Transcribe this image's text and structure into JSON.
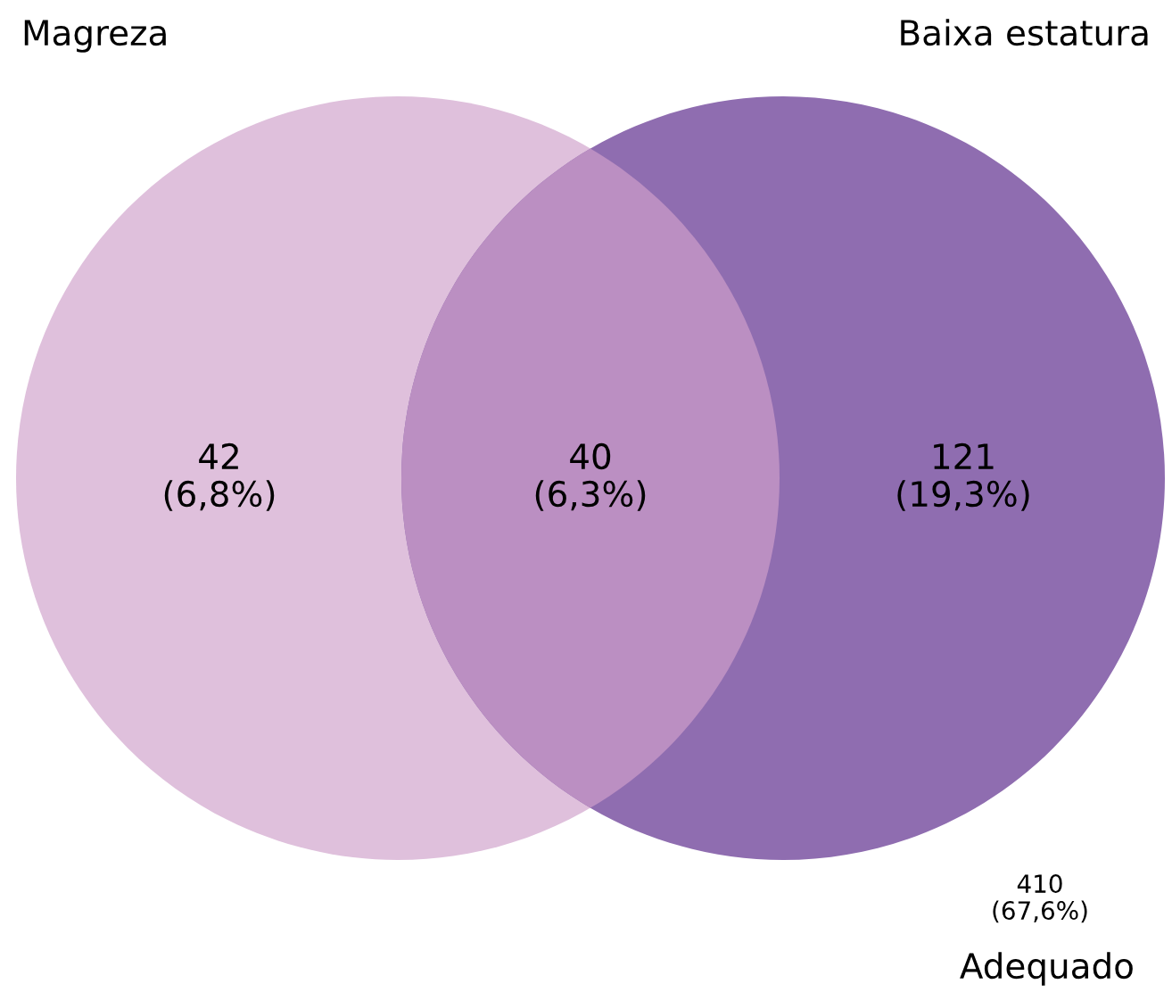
{
  "chart_data": {
    "type": "other",
    "categories": [
      "Magreza",
      null,
      "Baixa estatura",
      "Adequado"
    ],
    "values": [
      42,
      40,
      121,
      410
    ],
    "data_labels": true,
    "annotations": [
      "(6,8%)",
      "(6,3%)",
      "(19,3%)",
      "(67,6%)"
    ],
    "colors": [
      "#dfc0dc",
      "#bb8fc2",
      "#8f6db0",
      null
    ]
  }
}
